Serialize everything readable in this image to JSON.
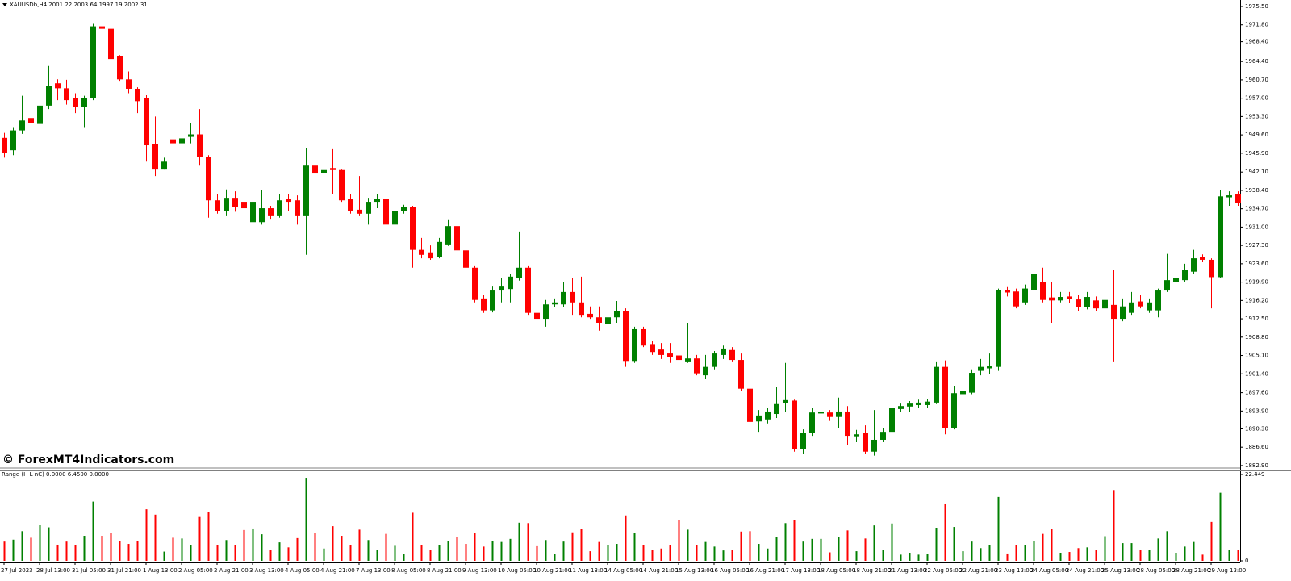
{
  "watermark": "© ForexMT4Indicators.com",
  "chart_data": [
    {
      "type": "candlestick",
      "title": "XAUUSDb,H4  2001.22 2003.64 1997.19 2002.31",
      "up_color": "#008000",
      "down_color": "#ff0000",
      "categories": [
        "27 Jul 2023",
        null,
        null,
        null,
        "28 Jul 13:00",
        null,
        null,
        null,
        "31 Jul 05:00",
        null,
        null,
        null,
        "31 Jul 21:00",
        null,
        null,
        null,
        "1 Aug 13:00",
        null,
        null,
        null,
        "2 Aug 05:00",
        null,
        null,
        null,
        "2 Aug 21:00",
        null,
        null,
        null,
        "3 Aug 13:00",
        null,
        null,
        null,
        "4 Aug 05:00",
        null,
        null,
        null,
        "4 Aug 21:00",
        null,
        null,
        null,
        "7 Aug 13:00",
        null,
        null,
        null,
        "8 Aug 05:00",
        null,
        null,
        null,
        "8 Aug 21:00",
        null,
        null,
        null,
        "9 Aug 13:00",
        null,
        null,
        null,
        "10 Aug 05:00",
        null,
        null,
        null,
        "10 Aug 21:00",
        null,
        null,
        null,
        "11 Aug 13:00",
        null,
        null,
        null,
        "14 Aug 05:00",
        null,
        null,
        null,
        "14 Aug 21:00",
        null,
        null,
        null,
        "15 Aug 13:00",
        null,
        null,
        null,
        "16 Aug 05:00",
        null,
        null,
        null,
        "16 Aug 21:00",
        null,
        null,
        null,
        "17 Aug 13:00",
        null,
        null,
        null,
        "18 Aug 05:00",
        null,
        null,
        null,
        "18 Aug 21:00",
        null,
        null,
        null,
        "21 Aug 13:00",
        null,
        null,
        null,
        "22 Aug 05:00",
        null,
        null,
        null,
        "22 Aug 21:00",
        null,
        null,
        null,
        "23 Aug 13:00",
        null,
        null,
        null,
        "24 Aug 05:00",
        null,
        null,
        null,
        "24 Aug 21:00",
        null,
        null,
        null,
        "25 Aug 13:00",
        null,
        null,
        null,
        "28 Aug 05:00",
        null,
        null,
        null,
        "28 Aug 21:00",
        null,
        null,
        null,
        "29 Aug 13:00",
        null,
        null,
        null
      ],
      "open": [
        1949,
        1946.5,
        1950.5,
        1953,
        1951.8,
        1955.5,
        1960,
        1959,
        1957,
        1955.2,
        1957,
        1971.5,
        1971,
        1965.5,
        1960.8,
        1958.9,
        1957,
        1947.8,
        1942.6,
        1948.7,
        1947.9,
        1949.2,
        1949.7,
        1945.2,
        1936.4,
        1934.2,
        1936.9,
        1936.1,
        1932,
        1932,
        1934.8,
        1933.2,
        1936.7,
        1936.4,
        1933.2,
        1943.4,
        1941.9,
        1942.9,
        1942.5,
        1936.7,
        1934.5,
        1933.7,
        1936.1,
        1936.6,
        1931.5,
        1934.2,
        1935,
        1926.4,
        1925.9,
        1925,
        1927.5,
        1931.2,
        1926.3,
        1922.8,
        1916.6,
        1914.2,
        1918.2,
        1918.5,
        1920.7,
        1922.8,
        1913.7,
        1912.5,
        1915.4,
        1915.4,
        1917.9,
        1915.8,
        1913.5,
        1912.8,
        1911.4,
        1912.8,
        1914.1,
        1904,
        1910.4,
        1907.4,
        1906.3,
        1905.5,
        1905.1,
        1903.9,
        1904.5,
        1901.1,
        1902.8,
        1905.2,
        1906.2,
        1904.2,
        1898.4,
        1891.8,
        1892.2,
        1893.3,
        1895.5,
        1896,
        1886.2,
        1889.4,
        1893.4,
        1893.6,
        1892.7,
        1893.8,
        1888.8,
        1889.4,
        1885.7,
        1888.1,
        1889.7,
        1894.3,
        1894.8,
        1895.1,
        1895.1,
        1895.6,
        1902.8,
        1890.5,
        1897.3,
        1897.6,
        1902,
        1902.5,
        1902.8,
        1918.3,
        1918,
        1915.8,
        1918.3,
        1919.9,
        1916.8,
        1916.2,
        1917,
        1916.4,
        1914.9,
        1916.2,
        1914.6,
        1915.3,
        1912.5,
        1913.7,
        1916,
        1914.2,
        1914.2,
        1918.2,
        1919.9,
        1920.3,
        1922,
        1924.9,
        1924.4,
        1920.9,
        1937,
        1937.7
      ],
      "high": [
        1950,
        1951,
        1957.5,
        1954,
        1960.9,
        1963.5,
        1960.8,
        1960.7,
        1958,
        1957.5,
        1972,
        1972,
        1971.2,
        1965.7,
        1962.4,
        1959.2,
        1957.6,
        1953.3,
        1945,
        1952.7,
        1950.8,
        1951.9,
        1954.8,
        1945.5,
        1937.7,
        1938.6,
        1938.2,
        1938.4,
        1937.7,
        1938.4,
        1935.3,
        1937.7,
        1937.7,
        1937.4,
        1947,
        1945,
        1943.4,
        1946.7,
        1942.6,
        1937.7,
        1941.3,
        1936.9,
        1937.7,
        1938.2,
        1934.8,
        1935.5,
        1935.3,
        1928.8,
        1927.3,
        1928.8,
        1932.4,
        1932.1,
        1926.7,
        1923.1,
        1917.4,
        1919,
        1920.7,
        1921.5,
        1930.1,
        1923.1,
        1915.8,
        1916.3,
        1916.6,
        1919.9,
        1920.7,
        1921,
        1915,
        1915,
        1915,
        1916.1,
        1914.6,
        1910.9,
        1910.9,
        1908.1,
        1907.6,
        1907.6,
        1907.1,
        1911.7,
        1905.2,
        1905.2,
        1906,
        1907.1,
        1906.8,
        1905.5,
        1898.7,
        1894.1,
        1894.6,
        1898.7,
        1903.6,
        1896.2,
        1890.2,
        1894.6,
        1895.4,
        1894.1,
        1896.6,
        1894.9,
        1890.1,
        1891,
        1894.1,
        1890.5,
        1895.4,
        1895.4,
        1895.9,
        1896.2,
        1896.4,
        1903.9,
        1904.1,
        1899,
        1898.7,
        1902.3,
        1904.4,
        1905.5,
        1918.6,
        1918.9,
        1918.6,
        1919.4,
        1923.1,
        1922.8,
        1919.9,
        1917.9,
        1917.9,
        1917.4,
        1917.9,
        1917,
        1920.2,
        1922.3,
        1916.6,
        1917.9,
        1917.4,
        1916.6,
        1918.6,
        1925.6,
        1921.5,
        1923.6,
        1926.4,
        1925.5,
        1924.7,
        1938.4,
        1938.2,
        1938.2
      ],
      "low": [
        1945,
        1945.5,
        1949.8,
        1948,
        1951.5,
        1954.8,
        1956.6,
        1955.7,
        1954,
        1951,
        1956.6,
        1965.5,
        1963.9,
        1960.5,
        1958,
        1954,
        1944.2,
        1941.3,
        1942.6,
        1946.7,
        1945,
        1947.9,
        1943.4,
        1932.9,
        1933.7,
        1933.2,
        1934.1,
        1930.4,
        1929.3,
        1931.5,
        1932.5,
        1932.9,
        1934.2,
        1931.5,
        1925.4,
        1937.8,
        1940.2,
        1937.7,
        1936.1,
        1933.7,
        1933.2,
        1931.5,
        1934.8,
        1931.2,
        1930.9,
        1933.7,
        1922.8,
        1924.7,
        1924.4,
        1924.7,
        1927.2,
        1926,
        1922.3,
        1915.8,
        1913.7,
        1913.8,
        1915.8,
        1915.8,
        1920.2,
        1913.3,
        1912,
        1910.9,
        1914.9,
        1914.9,
        1913.3,
        1912.8,
        1912.5,
        1910.1,
        1910.9,
        1911.7,
        1902.8,
        1903.6,
        1906.8,
        1905.2,
        1904.4,
        1903.6,
        1896.6,
        1903.6,
        1901.1,
        1900.3,
        1902.3,
        1904.4,
        1903.9,
        1897.9,
        1891,
        1889.7,
        1891.4,
        1892.5,
        1893.8,
        1885.7,
        1885.2,
        1888.9,
        1889.7,
        1891.9,
        1890.5,
        1887,
        1887.6,
        1885.2,
        1884.9,
        1887.6,
        1885.7,
        1893.8,
        1893.8,
        1894.6,
        1894.6,
        1895.3,
        1889.2,
        1890.2,
        1896.2,
        1897.3,
        1901.1,
        1901.4,
        1902,
        1917,
        1914.6,
        1915.3,
        1918,
        1915.8,
        1911.7,
        1915.8,
        1915.6,
        1914.1,
        1914.4,
        1914.1,
        1913.8,
        1903.9,
        1912,
        1913.3,
        1914.6,
        1913.7,
        1912.8,
        1917.9,
        1919.4,
        1919.9,
        1921.5,
        1923.9,
        1914.6,
        1920.7,
        1935.3,
        1935.3
      ],
      "close": [
        1946,
        1950.5,
        1952.5,
        1952,
        1955.5,
        1959.5,
        1959,
        1956.6,
        1955.2,
        1957,
        1971.5,
        1971,
        1964.9,
        1960.8,
        1958.9,
        1956.4,
        1947.5,
        1942.6,
        1944.2,
        1947.9,
        1948.9,
        1949.7,
        1945.2,
        1936.4,
        1934.2,
        1936.9,
        1935.1,
        1934.8,
        1936.1,
        1934.8,
        1933.2,
        1936.4,
        1936.1,
        1933.2,
        1943.4,
        1941.8,
        1942.5,
        1942.5,
        1936.4,
        1934.2,
        1933.7,
        1936.1,
        1936.6,
        1931.5,
        1934.2,
        1935,
        1926.4,
        1925.4,
        1924.7,
        1928,
        1931.2,
        1926.3,
        1922.8,
        1916.3,
        1914.2,
        1918.2,
        1919,
        1921,
        1922.8,
        1913.7,
        1912.5,
        1915.4,
        1915.8,
        1917.9,
        1915.8,
        1913.3,
        1912.8,
        1911.7,
        1912.8,
        1914.1,
        1904,
        1910.4,
        1907.1,
        1905.8,
        1905.2,
        1904.7,
        1904.2,
        1904.5,
        1901.5,
        1902.8,
        1905.5,
        1906.5,
        1904.2,
        1898.4,
        1891.7,
        1893,
        1893.8,
        1895.3,
        1896.1,
        1886.2,
        1889.4,
        1893.6,
        1893.7,
        1892.7,
        1893.8,
        1888.9,
        1889.2,
        1885.7,
        1888.1,
        1889.7,
        1894.6,
        1894.9,
        1895.4,
        1895.6,
        1895.8,
        1902.8,
        1890.5,
        1897.5,
        1897.9,
        1901.6,
        1902.8,
        1902.9,
        1918.3,
        1917.8,
        1915,
        1918.6,
        1921.5,
        1916.3,
        1916.2,
        1916.9,
        1916.5,
        1914.9,
        1916.9,
        1914.6,
        1916.3,
        1912.5,
        1915,
        1915.8,
        1915,
        1915.8,
        1918.2,
        1920.3,
        1920.7,
        1922.3,
        1924.7,
        1924.4,
        1920.9,
        1937.2,
        1937.4,
        1935.8
      ],
      "ylim": [
        1882.4,
        1976.8
      ],
      "yticks": [
        {
          "value": 1975.5,
          "label": "1975.50"
        },
        {
          "value": 1971.8,
          "label": "1971.80"
        },
        {
          "value": 1968.4,
          "label": "1968.40"
        },
        {
          "value": 1964.4,
          "label": "1964.40"
        },
        {
          "value": 1960.7,
          "label": "1960.70"
        },
        {
          "value": 1957,
          "label": "1957.00"
        },
        {
          "value": 1953.3,
          "label": "1953.30"
        },
        {
          "value": 1949.6,
          "label": "1949.60"
        },
        {
          "value": 1945.9,
          "label": "1945.90"
        },
        {
          "value": 1942.1,
          "label": "1942.10"
        },
        {
          "value": 1938.4,
          "label": "1938.40"
        },
        {
          "value": 1934.7,
          "label": "1934.70"
        },
        {
          "value": 1931,
          "label": "1931.00"
        },
        {
          "value": 1927.3,
          "label": "1927.30"
        },
        {
          "value": 1923.6,
          "label": "1923.60"
        },
        {
          "value": 1919.9,
          "label": "1919.90"
        },
        {
          "value": 1916.2,
          "label": "1916.20"
        },
        {
          "value": 1912.5,
          "label": "1912.50"
        },
        {
          "value": 1908.8,
          "label": "1908.80"
        },
        {
          "value": 1905.1,
          "label": "1905.10"
        },
        {
          "value": 1901.4,
          "label": "1901.40"
        },
        {
          "value": 1897.6,
          "label": "1897.60"
        },
        {
          "value": 1893.9,
          "label": "1893.90"
        },
        {
          "value": 1890.3,
          "label": "1890.30"
        },
        {
          "value": 1886.6,
          "label": "1886.60"
        },
        {
          "value": 1882.9,
          "label": "1882.90"
        }
      ],
      "grid": false
    },
    {
      "type": "bar",
      "title": "Range (H L nC) 0.0000 6.4500 0.0000",
      "values": [
        5.0,
        5.5,
        7.7,
        6.0,
        9.4,
        8.7,
        4.2,
        5.0,
        4.0,
        6.5,
        15.4,
        6.5,
        7.3,
        5.2,
        4.4,
        5.2,
        13.4,
        12.0,
        2.4,
        6.0,
        5.8,
        4.0,
        11.4,
        12.6,
        4.0,
        5.4,
        4.1,
        8.0,
        8.4,
        6.9,
        2.8,
        4.8,
        3.5,
        5.9,
        21.6,
        7.2,
        3.2,
        9.0,
        6.5,
        4.0,
        8.1,
        5.4,
        2.9,
        7.0,
        3.9,
        1.8,
        12.5,
        4.1,
        2.9,
        4.1,
        5.2,
        6.1,
        4.4,
        7.3,
        3.7,
        5.2,
        4.9,
        5.7,
        9.9,
        9.8,
        3.8,
        5.4,
        1.7,
        5.0,
        7.4,
        8.2,
        2.5,
        4.9,
        4.1,
        4.4,
        11.8,
        7.3,
        4.1,
        2.9,
        3.2,
        4.0,
        10.5,
        8.1,
        4.1,
        4.9,
        3.7,
        2.7,
        2.9,
        7.6,
        7.7,
        4.4,
        3.2,
        6.2,
        9.8,
        10.5,
        5.0,
        5.7,
        5.7,
        2.2,
        6.1,
        7.9,
        2.5,
        5.8,
        9.2,
        2.9,
        9.7,
        1.6,
        2.1,
        1.6,
        1.8,
        8.6,
        14.9,
        8.8,
        2.5,
        5.0,
        3.3,
        4.1,
        16.6,
        1.9,
        4.0,
        4.1,
        5.1,
        7.0,
        8.2,
        2.1,
        2.3,
        3.3,
        3.5,
        2.9,
        6.4,
        18.4,
        4.6,
        4.6,
        2.8,
        2.9,
        5.8,
        7.7,
        2.1,
        3.7,
        4.9,
        1.6,
        10.1,
        17.7,
        2.9,
        2.9
      ],
      "ylim": [
        0,
        22.449
      ],
      "yticks": [
        22.449,
        0
      ]
    }
  ]
}
